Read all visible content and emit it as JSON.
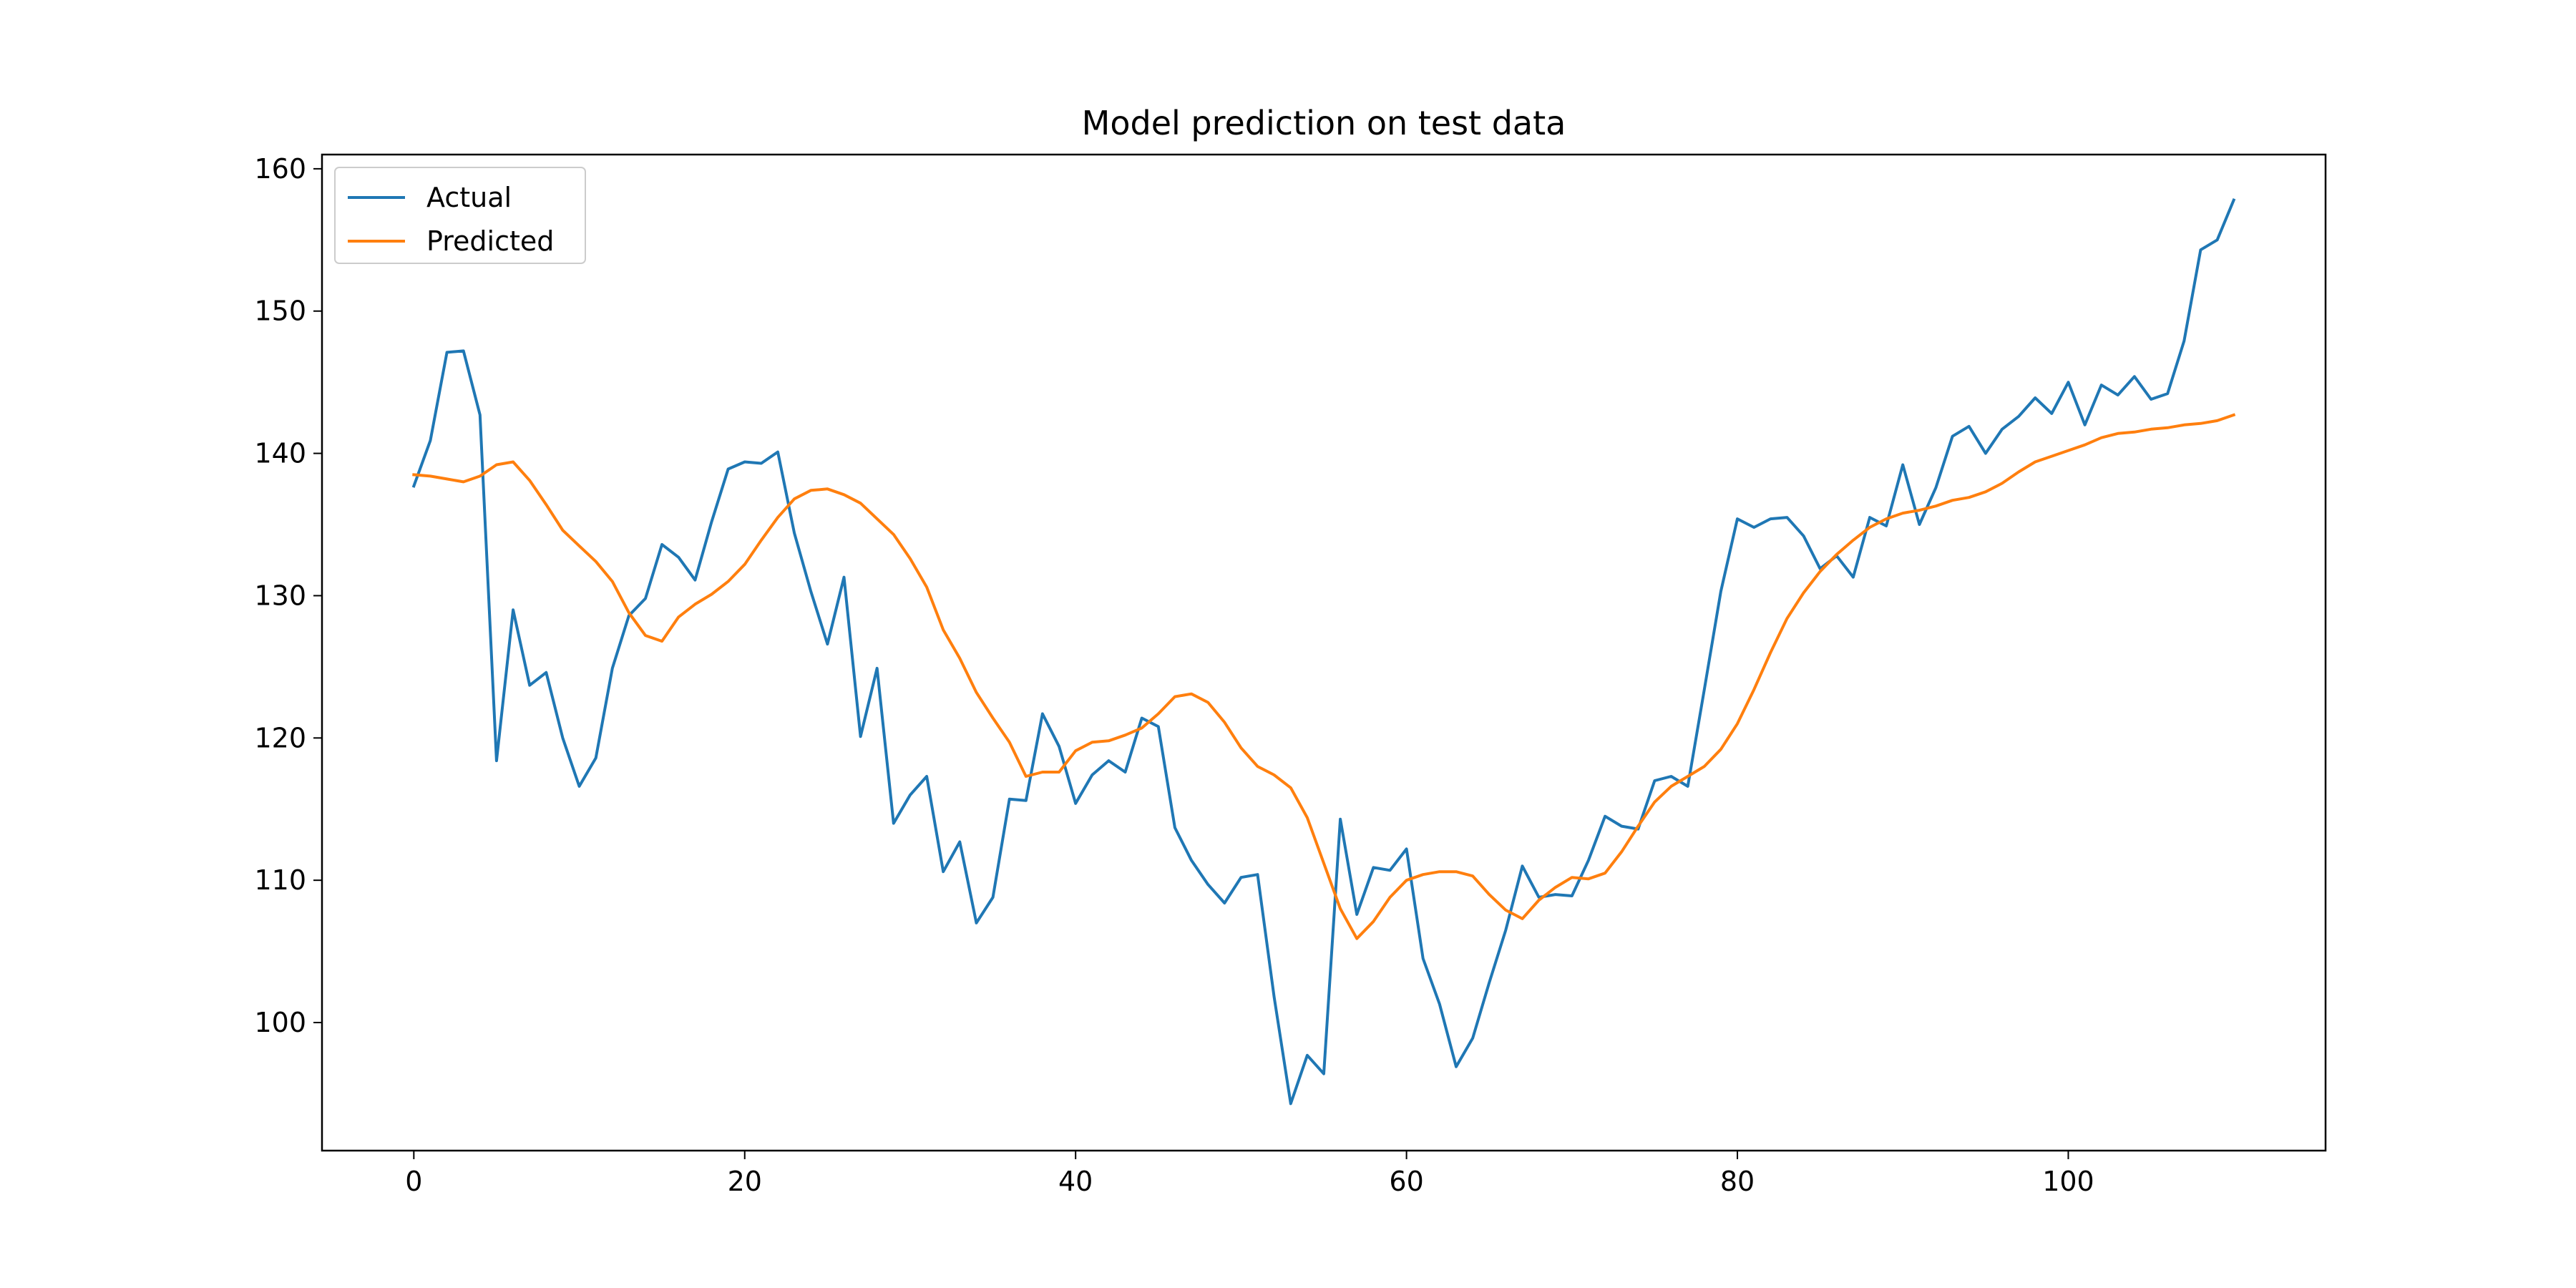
{
  "chart_data": {
    "type": "line",
    "title": "Model prediction on test data",
    "xlabel": "",
    "ylabel": "",
    "xlim": [
      -5.55,
      115.55
    ],
    "ylim": [
      91.0,
      161.0
    ],
    "xticks": [
      0,
      20,
      40,
      60,
      80,
      100
    ],
    "yticks": [
      100,
      110,
      120,
      130,
      140,
      150,
      160
    ],
    "grid": false,
    "legend_position": "top-left",
    "series": [
      {
        "name": "Actual",
        "color": "#1f77b4",
        "x": [
          0,
          1,
          2,
          3,
          4,
          5,
          6,
          7,
          8,
          9,
          10,
          11,
          12,
          13,
          14,
          15,
          16,
          17,
          18,
          19,
          20,
          21,
          22,
          23,
          24,
          25,
          26,
          27,
          28,
          29,
          30,
          31,
          32,
          33,
          34,
          35,
          36,
          37,
          38,
          39,
          40,
          41,
          42,
          43,
          44,
          45,
          46,
          47,
          48,
          49,
          50,
          51,
          52,
          53,
          54,
          55,
          56,
          57,
          58,
          59,
          60,
          61,
          62,
          63,
          64,
          65,
          66,
          67,
          68,
          69,
          70,
          71,
          72,
          73,
          74,
          75,
          76,
          77,
          78,
          79,
          80,
          81,
          82,
          83,
          84,
          85,
          86,
          87,
          88,
          89,
          90,
          91,
          92,
          93,
          94,
          95,
          96,
          97,
          98,
          99,
          100,
          101,
          102,
          103,
          104,
          105,
          106,
          107,
          108,
          109,
          110
        ],
        "values": [
          137.7,
          140.9,
          147.1,
          147.2,
          142.7,
          118.4,
          129.0,
          123.7,
          124.6,
          120.0,
          116.6,
          118.6,
          124.9,
          128.6,
          129.8,
          133.6,
          132.7,
          131.1,
          135.2,
          138.9,
          139.4,
          139.3,
          140.1,
          134.4,
          130.3,
          126.6,
          131.3,
          120.1,
          124.9,
          114.0,
          116.0,
          117.3,
          110.6,
          112.7,
          107.0,
          108.8,
          115.7,
          115.6,
          121.7,
          119.4,
          115.4,
          117.4,
          118.4,
          117.6,
          121.4,
          120.8,
          113.7,
          111.4,
          109.7,
          108.4,
          110.2,
          110.4,
          101.8,
          94.3,
          97.7,
          96.4,
          114.3,
          107.6,
          110.9,
          110.7,
          112.2,
          104.5,
          101.3,
          96.9,
          98.9,
          102.8,
          106.5,
          111.0,
          108.8,
          109.0,
          108.9,
          111.4,
          114.5,
          113.8,
          113.6,
          117.0,
          117.3,
          116.6,
          123.4,
          130.3,
          135.4,
          134.8,
          135.4,
          135.5,
          134.2,
          131.9,
          132.8,
          131.3,
          135.5,
          134.9,
          139.2,
          135.0,
          137.6,
          141.2,
          141.9,
          140.0,
          141.7,
          142.6,
          143.9,
          142.8,
          145.0,
          142.0,
          144.8,
          144.1,
          145.4,
          143.8,
          144.2,
          147.9,
          154.3,
          155.0,
          157.8
        ]
      },
      {
        "name": "Predicted",
        "color": "#ff7f0e",
        "x": [
          0,
          1,
          2,
          3,
          4,
          5,
          6,
          7,
          8,
          9,
          10,
          11,
          12,
          13,
          14,
          15,
          16,
          17,
          18,
          19,
          20,
          21,
          22,
          23,
          24,
          25,
          26,
          27,
          28,
          29,
          30,
          31,
          32,
          33,
          34,
          35,
          36,
          37,
          38,
          39,
          40,
          41,
          42,
          43,
          44,
          45,
          46,
          47,
          48,
          49,
          50,
          51,
          52,
          53,
          54,
          55,
          56,
          57,
          58,
          59,
          60,
          61,
          62,
          63,
          64,
          65,
          66,
          67,
          68,
          69,
          70,
          71,
          72,
          73,
          74,
          75,
          76,
          77,
          78,
          79,
          80,
          81,
          82,
          83,
          84,
          85,
          86,
          87,
          88,
          89,
          90,
          91,
          92,
          93,
          94,
          95,
          96,
          97,
          98,
          99,
          100,
          101,
          102,
          103,
          104,
          105,
          106,
          107,
          108,
          109,
          110
        ],
        "values": [
          138.5,
          138.4,
          138.2,
          138.0,
          138.4,
          139.2,
          139.4,
          138.1,
          136.4,
          134.6,
          133.5,
          132.4,
          131.0,
          128.8,
          127.2,
          126.8,
          128.5,
          129.4,
          130.1,
          131.0,
          132.2,
          133.9,
          135.5,
          136.8,
          137.4,
          137.5,
          137.1,
          136.5,
          135.4,
          134.3,
          132.6,
          130.6,
          127.6,
          125.6,
          123.2,
          121.4,
          119.7,
          117.3,
          117.6,
          117.6,
          119.1,
          119.7,
          119.8,
          120.2,
          120.7,
          121.7,
          122.9,
          123.1,
          122.5,
          121.1,
          119.3,
          118.0,
          117.4,
          116.5,
          114.4,
          111.2,
          108.0,
          105.9,
          107.1,
          108.8,
          110.0,
          110.4,
          110.6,
          110.6,
          110.3,
          109.0,
          107.9,
          107.3,
          108.6,
          109.5,
          110.2,
          110.1,
          110.5,
          112.0,
          113.8,
          115.5,
          116.6,
          117.3,
          118.0,
          119.2,
          121.0,
          123.4,
          126.0,
          128.4,
          130.2,
          131.7,
          132.9,
          133.9,
          134.8,
          135.4,
          135.8,
          136.0,
          136.3,
          136.7,
          136.9,
          137.3,
          137.9,
          138.7,
          139.4,
          139.8,
          140.2,
          140.6,
          141.1,
          141.4,
          141.5,
          141.7,
          141.8,
          142.0,
          142.1,
          142.3,
          142.7
        ]
      }
    ]
  }
}
